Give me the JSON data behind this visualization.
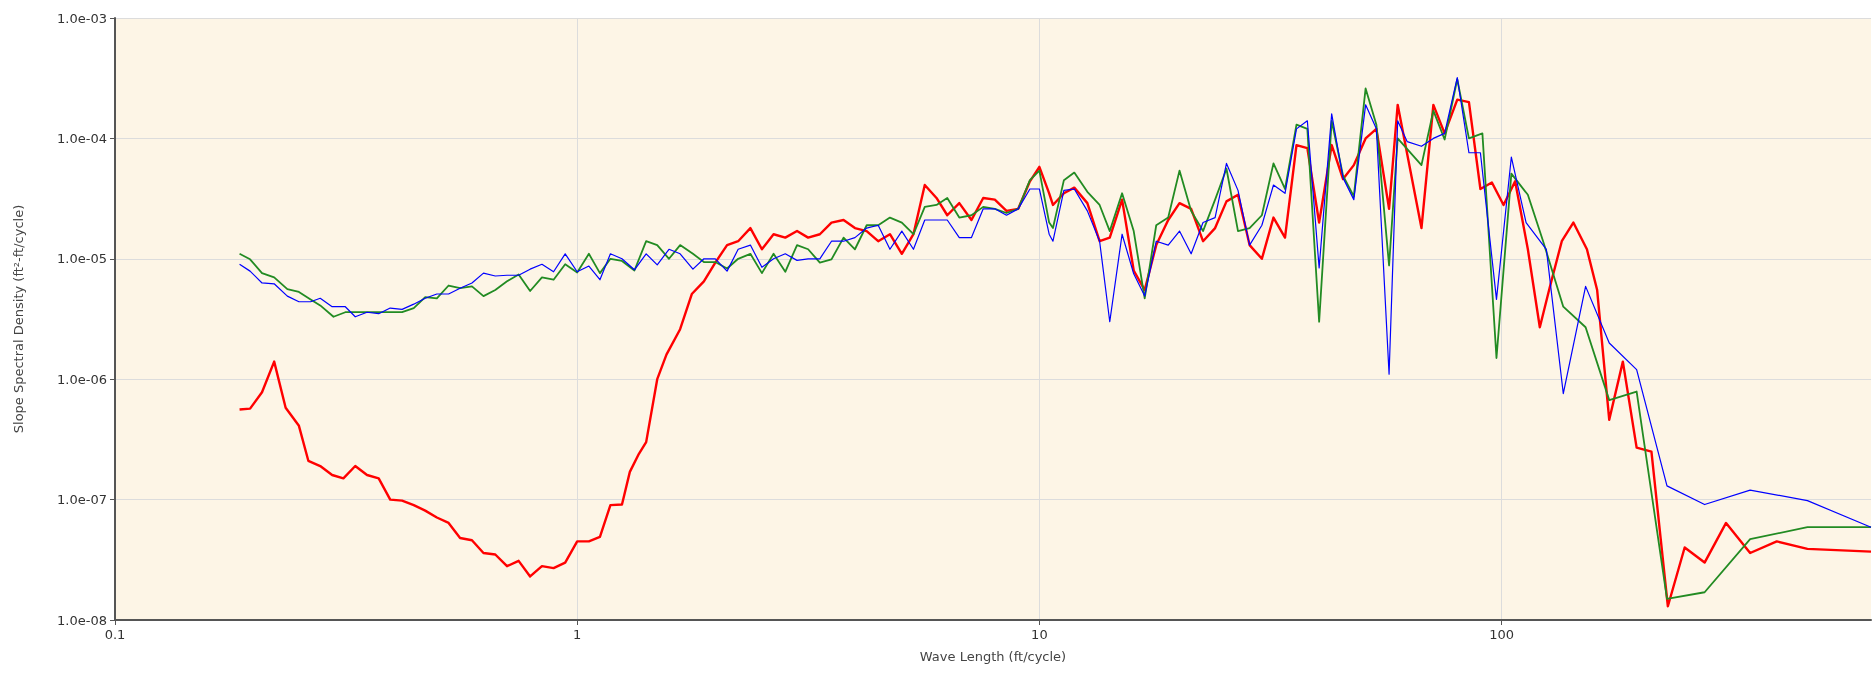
{
  "chart_data": {
    "type": "line",
    "xlabel": "Wave Length (ft/cycle)",
    "ylabel": "Slope Spectral Density (ft²-ft/cycle)",
    "log": "xy",
    "grid": true,
    "xlim": [
      0.1,
      630
    ],
    "xticks": [
      0.1,
      1,
      10,
      100
    ],
    "ylim": [
      1e-08,
      0.001
    ],
    "yticks": [
      {
        "value": 1e-08,
        "label": "1.0e-08"
      },
      {
        "value": 1e-07,
        "label": "1.0e-07"
      },
      {
        "value": 1e-06,
        "label": "1.0e-06"
      },
      {
        "value": 1e-05,
        "label": "1.0e-05"
      },
      {
        "value": 0.0001,
        "label": "1.0e-04"
      },
      {
        "value": 0.001,
        "label": "1.0e-03"
      }
    ],
    "series": [
      {
        "color": "#ff0000",
        "x": [
          0.186,
          0.196,
          0.208,
          0.221,
          0.234,
          0.25,
          0.262,
          0.278,
          0.295,
          0.312,
          0.331,
          0.351,
          0.372,
          0.394,
          0.418,
          0.443,
          0.469,
          0.497,
          0.527,
          0.558,
          0.592,
          0.627,
          0.665,
          0.705,
          0.747,
          0.791,
          0.839,
          0.889,
          0.942,
          1.0,
          1.06,
          1.12,
          1.18,
          1.25,
          1.3,
          1.36,
          1.41,
          1.49,
          1.56,
          1.67,
          1.77,
          1.88,
          1.99,
          2.11,
          2.23,
          2.37,
          2.51,
          2.66,
          2.82,
          2.99,
          3.16,
          3.35,
          3.55,
          3.77,
          3.99,
          4.23,
          4.48,
          4.75,
          5.04,
          5.34,
          5.65,
          5.99,
          6.32,
          6.71,
          7.13,
          7.56,
          8.01,
          8.49,
          9.0,
          9.54,
          10.0,
          10.5,
          10.7,
          11.3,
          11.9,
          12.7,
          13.5,
          14.2,
          15.1,
          16.0,
          16.9,
          17.9,
          19.0,
          20.1,
          21.3,
          22.6,
          24.0,
          25.4,
          26.9,
          28.5,
          30.3,
          32.1,
          34.0,
          36.0,
          38.0,
          40.3,
          42.9,
          45.4,
          47.9,
          50.8,
          53.6,
          57.1,
          59.6,
          67.1,
          71.2,
          75.3,
          80.2,
          85.0,
          90.0,
          95.3,
          101,
          107,
          114,
          121,
          127,
          135,
          143,
          153,
          161,
          171,
          183,
          196,
          211,
          229,
          249,
          275,
          306,
          345,
          394,
          459,
          630
        ],
        "values": [
          5.6e-07,
          5.7e-07,
          7.8e-07,
          1.4e-06,
          5.8e-07,
          4.1e-07,
          2.1e-07,
          1.9e-07,
          1.6e-07,
          1.5e-07,
          1.9e-07,
          1.6e-07,
          1.5e-07,
          1e-07,
          9.8e-08,
          9e-08,
          8.1e-08,
          7.1e-08,
          6.4e-08,
          4.8e-08,
          4.6e-08,
          3.6e-08,
          3.5e-08,
          2.8e-08,
          3.1e-08,
          2.3e-08,
          2.8e-08,
          2.7e-08,
          3e-08,
          4.5e-08,
          4.5e-08,
          4.9e-08,
          9e-08,
          9.1e-08,
          1.7e-07,
          2.4e-07,
          3e-07,
          1e-06,
          1.6e-06,
          2.6e-06,
          5.1e-06,
          6.5e-06,
          9.3e-06,
          1.3e-05,
          1.4e-05,
          1.8e-05,
          1.2e-05,
          1.6e-05,
          1.5e-05,
          1.7e-05,
          1.5e-05,
          1.6e-05,
          2e-05,
          2.1e-05,
          1.8e-05,
          1.7e-05,
          1.4e-05,
          1.6e-05,
          1.1e-05,
          1.6e-05,
          4.1e-05,
          3.2e-05,
          2.3e-05,
          2.9e-05,
          2.1e-05,
          3.2e-05,
          3.1e-05,
          2.5e-05,
          2.6e-05,
          4.4e-05,
          5.8e-05,
          3.5e-05,
          2.8e-05,
          3.5e-05,
          3.9e-05,
          2.9e-05,
          1.4e-05,
          1.5e-05,
          3.1e-05,
          8e-06,
          5.5e-06,
          1.3e-05,
          2.1e-05,
          2.9e-05,
          2.6e-05,
          1.4e-05,
          1.8e-05,
          3e-05,
          3.4e-05,
          1.3e-05,
          1e-05,
          2.2e-05,
          1.5e-05,
          8.8e-05,
          8.3e-05,
          2e-05,
          8.8e-05,
          4.6e-05,
          6e-05,
          0.0001,
          0.00012,
          2.6e-05,
          0.00019,
          1.8e-05,
          0.00019,
          0.00011,
          0.00021,
          0.0002,
          3.8e-05,
          4.3e-05,
          2.8e-05,
          4.4e-05,
          1.2e-05,
          2.7e-06,
          5.7e-06,
          1.4e-05,
          2e-05,
          1.2e-05,
          5.5e-06,
          4.6e-07,
          1.4e-06,
          2.7e-07,
          2.5e-07,
          1.3e-08,
          4e-08,
          3e-08,
          6.4e-08,
          3.6e-08,
          4.5e-08,
          3.9e-08,
          3.7e-08
        ]
      },
      {
        "color": "#228b22",
        "x": [
          0.186,
          0.196,
          0.208,
          0.221,
          0.236,
          0.25,
          0.265,
          0.278,
          0.297,
          0.315,
          0.337,
          0.372,
          0.394,
          0.418,
          0.443,
          0.469,
          0.497,
          0.527,
          0.558,
          0.592,
          0.627,
          0.665,
          0.705,
          0.747,
          0.791,
          0.839,
          0.889,
          0.942,
          1.0,
          1.06,
          1.12,
          1.18,
          1.25,
          1.33,
          1.41,
          1.49,
          1.58,
          1.67,
          1.78,
          1.88,
          1.99,
          2.11,
          2.23,
          2.37,
          2.51,
          2.66,
          2.82,
          2.99,
          3.16,
          3.35,
          3.55,
          3.77,
          3.99,
          4.23,
          4.48,
          4.75,
          5.04,
          5.34,
          5.65,
          5.99,
          6.32,
          6.71,
          7.13,
          7.56,
          8.01,
          8.49,
          9.0,
          9.54,
          10.0,
          10.5,
          10.7,
          11.3,
          11.9,
          12.7,
          13.5,
          14.2,
          15.1,
          16.0,
          16.9,
          17.9,
          19.0,
          20.1,
          21.3,
          22.6,
          24.0,
          25.4,
          26.9,
          28.5,
          30.3,
          32.1,
          34.0,
          36.0,
          38.0,
          40.3,
          42.9,
          45.4,
          47.9,
          50.8,
          53.6,
          57.1,
          59.6,
          67.1,
          71.2,
          75.3,
          80.2,
          85.0,
          90.9,
          97.5,
          105,
          114,
          123,
          136,
          152,
          171,
          196,
          228,
          275,
          345,
          459,
          630
        ],
        "values": [
          1.1e-05,
          9.9e-06,
          7.6e-06,
          7e-06,
          5.6e-06,
          5.3e-06,
          4.6e-06,
          4.1e-06,
          3.3e-06,
          3.6e-06,
          3.6e-06,
          3.6e-06,
          3.6e-06,
          3.6e-06,
          3.9e-06,
          4.8e-06,
          4.7e-06,
          6e-06,
          5.7e-06,
          5.9e-06,
          4.9e-06,
          5.5e-06,
          6.5e-06,
          7.4e-06,
          5.4e-06,
          7e-06,
          6.7e-06,
          9e-06,
          7.7e-06,
          1.1e-05,
          7.6e-06,
          1e-05,
          9.6e-06,
          8e-06,
          1.4e-05,
          1.3e-05,
          1e-05,
          1.3e-05,
          1.1e-05,
          9.4e-06,
          9.4e-06,
          8.3e-06,
          1e-05,
          1.1e-05,
          7.6e-06,
          1.1e-05,
          7.8e-06,
          1.3e-05,
          1.2e-05,
          9.3e-06,
          9.9e-06,
          1.5e-05,
          1.2e-05,
          1.9e-05,
          1.9e-05,
          2.2e-05,
          2e-05,
          1.6e-05,
          2.7e-05,
          2.8e-05,
          3.2e-05,
          2.2e-05,
          2.3e-05,
          2.7e-05,
          2.6e-05,
          2.4e-05,
          2.6e-05,
          4.5e-05,
          5.4e-05,
          2e-05,
          1.8e-05,
          4.5e-05,
          5.2e-05,
          3.6e-05,
          2.8e-05,
          1.7e-05,
          3.5e-05,
          1.7e-05,
          4.7e-06,
          1.9e-05,
          2.2e-05,
          5.4e-05,
          2.5e-05,
          1.7e-05,
          3.1e-05,
          5.6e-05,
          1.7e-05,
          1.8e-05,
          2.3e-05,
          6.2e-05,
          3.8e-05,
          0.00013,
          0.00012,
          3e-06,
          0.00014,
          4.9e-05,
          3.3e-05,
          0.00026,
          0.00013,
          8.8e-06,
          0.0001,
          6e-05,
          0.00017,
          9.8e-05,
          0.00031,
          0.0001,
          0.00011,
          1.5e-06,
          5.1e-05,
          3.4e-05,
          1.4e-05,
          4e-06,
          2.7e-06,
          6.7e-07,
          7.9e-07,
          1.5e-08,
          1.7e-08,
          4.7e-08,
          5.9e-08,
          5.9e-08
        ]
      },
      {
        "color": "#0000ff",
        "x": [
          0.186,
          0.196,
          0.208,
          0.221,
          0.236,
          0.25,
          0.265,
          0.278,
          0.295,
          0.315,
          0.331,
          0.351,
          0.372,
          0.394,
          0.418,
          0.443,
          0.469,
          0.497,
          0.527,
          0.558,
          0.592,
          0.627,
          0.665,
          0.705,
          0.747,
          0.791,
          0.839,
          0.889,
          0.942,
          1.0,
          1.06,
          1.12,
          1.18,
          1.25,
          1.33,
          1.41,
          1.49,
          1.58,
          1.67,
          1.78,
          1.88,
          1.99,
          2.11,
          2.23,
          2.37,
          2.51,
          2.66,
          2.82,
          2.99,
          3.16,
          3.35,
          3.55,
          3.77,
          3.99,
          4.23,
          4.48,
          4.75,
          5.04,
          5.34,
          5.65,
          5.99,
          6.32,
          6.71,
          7.13,
          7.56,
          8.01,
          8.49,
          9.0,
          9.54,
          10.0,
          10.5,
          10.7,
          11.3,
          11.9,
          12.7,
          13.5,
          14.2,
          15.1,
          16.0,
          16.9,
          17.9,
          19.0,
          20.1,
          21.3,
          22.6,
          24.0,
          25.4,
          26.9,
          28.5,
          30.3,
          32.1,
          34.0,
          36.0,
          38.0,
          40.3,
          42.9,
          45.4,
          47.9,
          50.8,
          53.6,
          57.1,
          59.6,
          62.5,
          67.1,
          71.2,
          75.3,
          80.2,
          85.0,
          90.0,
          97.5,
          105,
          113,
          125,
          136,
          152,
          171,
          196,
          228,
          275,
          345,
          459,
          630
        ],
        "values": [
          9e-06,
          7.9e-06,
          6.3e-06,
          6.2e-06,
          4.9e-06,
          4.4e-06,
          4.4e-06,
          4.7e-06,
          4e-06,
          4e-06,
          3.3e-06,
          3.6e-06,
          3.5e-06,
          3.9e-06,
          3.8e-06,
          4.2e-06,
          4.7e-06,
          5.1e-06,
          5.1e-06,
          5.7e-06,
          6.3e-06,
          7.6e-06,
          7.2e-06,
          7.3e-06,
          7.3e-06,
          8.2e-06,
          9e-06,
          7.8e-06,
          1.1e-05,
          7.8e-06,
          8.7e-06,
          6.7e-06,
          1.1e-05,
          1e-05,
          8.1e-06,
          1.1e-05,
          8.9e-06,
          1.2e-05,
          1.1e-05,
          8.2e-06,
          1e-05,
          1e-05,
          7.9e-06,
          1.2e-05,
          1.3e-05,
          8.5e-06,
          1e-05,
          1.1e-05,
          9.7e-06,
          1e-05,
          1e-05,
          1.4e-05,
          1.4e-05,
          1.5e-05,
          1.8e-05,
          1.9e-05,
          1.2e-05,
          1.7e-05,
          1.2e-05,
          2.1e-05,
          2.1e-05,
          2.1e-05,
          1.5e-05,
          1.5e-05,
          2.6e-05,
          2.6e-05,
          2.3e-05,
          2.6e-05,
          3.8e-05,
          3.8e-05,
          1.6e-05,
          1.4e-05,
          3.7e-05,
          3.8e-05,
          2.5e-05,
          1.4e-05,
          3e-06,
          1.6e-05,
          7.5e-06,
          4.9e-06,
          1.4e-05,
          1.3e-05,
          1.7e-05,
          1.1e-05,
          2e-05,
          2.2e-05,
          6.2e-05,
          3.7e-05,
          1.3e-05,
          1.9e-05,
          4.1e-05,
          3.5e-05,
          0.00012,
          0.00014,
          8.4e-06,
          0.00016,
          4.7e-05,
          3.1e-05,
          0.00019,
          0.00012,
          1.1e-06,
          0.00014,
          9.4e-05,
          8.6e-05,
          0.0001,
          0.00011,
          0.00032,
          7.6e-05,
          7.6e-05,
          4.6e-06,
          7e-05,
          2e-05,
          1.2e-05,
          7.6e-07,
          5.9e-06,
          2e-06,
          1.2e-06,
          1.3e-07,
          9.1e-08,
          1.2e-07,
          9.8e-08,
          5.9e-08
        ]
      }
    ]
  }
}
